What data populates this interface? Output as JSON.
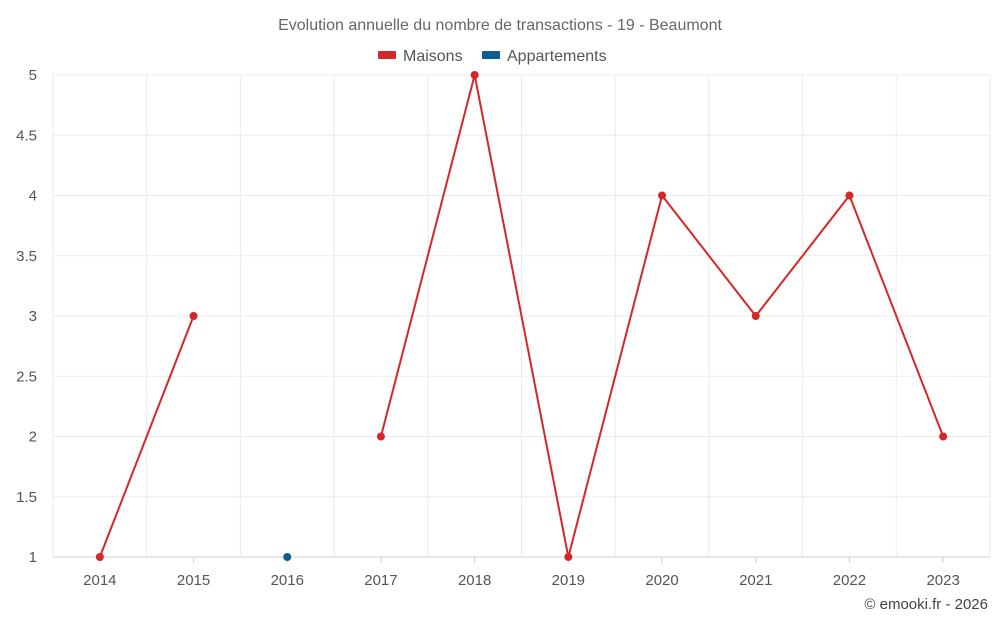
{
  "chart_data": {
    "type": "line",
    "title": "Evolution annuelle du nombre de transactions - 19 - Beaumont",
    "categories": [
      "2014",
      "2015",
      "2016",
      "2017",
      "2018",
      "2019",
      "2020",
      "2021",
      "2022",
      "2023"
    ],
    "ylim": [
      1,
      5
    ],
    "yticks": [
      "1",
      "1.5",
      "2",
      "2.5",
      "3",
      "3.5",
      "4",
      "4.5",
      "5"
    ],
    "grid": true,
    "legend_position": "top-center",
    "series": [
      {
        "name": "Maisons",
        "color": "#d62728",
        "values": [
          1,
          3,
          null,
          2,
          5,
          1,
          4,
          3,
          4,
          2
        ]
      },
      {
        "name": "Appartements",
        "color": "#0b5e95",
        "values": [
          null,
          null,
          1,
          null,
          null,
          null,
          null,
          null,
          null,
          null
        ]
      }
    ]
  },
  "credit": "© emooki.fr - 2026"
}
